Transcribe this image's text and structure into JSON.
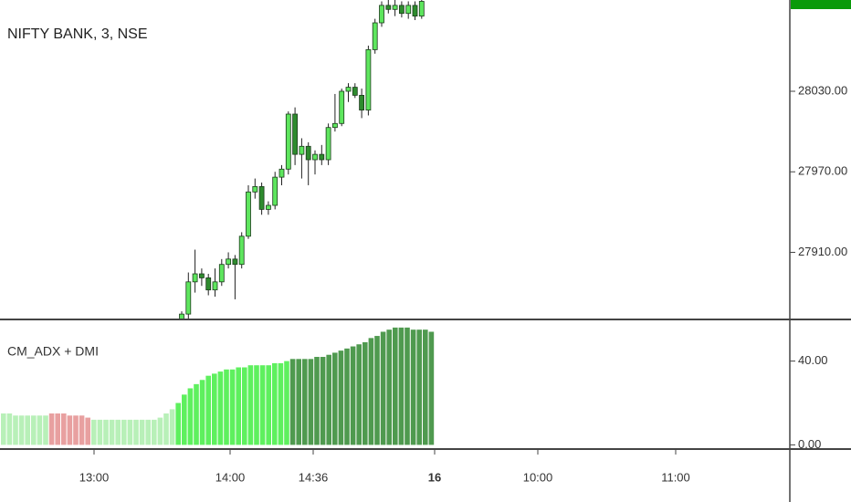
{
  "chart_data": [
    {
      "type": "candlestick",
      "title": "NIFTY BANK, 3, NSE",
      "open": [
        27858,
        27864,
        27888,
        27894,
        27891,
        27882,
        27888,
        27901,
        27905,
        27901,
        27922,
        27955,
        27959,
        27942,
        27945,
        27966,
        27972,
        28013,
        27983,
        27989,
        27979,
        27983,
        27979,
        28003,
        28006,
        28030,
        28033,
        28027,
        28016,
        28061,
        28081,
        28094,
        28091,
        28094,
        28088,
        28094,
        28086
      ],
      "high": [
        27866,
        27895,
        27912,
        27898,
        27894,
        27898,
        27905,
        27910,
        27908,
        27925,
        27960,
        27965,
        27962,
        27948,
        27970,
        27975,
        28015,
        28018,
        27995,
        27992,
        27986,
        27990,
        28006,
        28028,
        28032,
        28036,
        28036,
        28032,
        28064,
        28084,
        28097,
        28098,
        28098,
        28097,
        28097,
        28097,
        28098
      ],
      "low": [
        27855,
        27860,
        27880,
        27885,
        27878,
        27877,
        27885,
        27898,
        27875,
        27898,
        27920,
        27950,
        27938,
        27938,
        27942,
        27960,
        27968,
        27975,
        27965,
        27960,
        27968,
        27975,
        27975,
        28000,
        28004,
        28022,
        28025,
        28010,
        28012,
        28058,
        28078,
        28088,
        28086,
        28085,
        28084,
        28083,
        28084
      ],
      "close": [
        27864,
        27888,
        27894,
        27891,
        27882,
        27888,
        27901,
        27905,
        27901,
        27922,
        27955,
        27959,
        27942,
        27945,
        27966,
        27972,
        28013,
        27983,
        27989,
        27979,
        27983,
        27979,
        28003,
        28006,
        28030,
        28033,
        28027,
        28016,
        28061,
        28081,
        28094,
        28091,
        28094,
        28088,
        28094,
        28086,
        28097
      ],
      "up_color": "#5ee65e",
      "down_color": "#2e8b2e",
      "ylim": [
        27860,
        28098
      ],
      "yticks": [
        {
          "value": 28030,
          "label": "28030.00"
        },
        {
          "value": 27970,
          "label": "27970.00"
        },
        {
          "value": 27910,
          "label": "27910.00"
        }
      ]
    },
    {
      "type": "bar",
      "title": "CM_ADX + DMI",
      "series": [
        {
          "color": "#b8f0b8",
          "values": [
            15,
            15,
            14,
            14,
            14,
            14,
            14,
            14
          ]
        },
        {
          "color": "#e8a0a0",
          "values": [
            15,
            15,
            15,
            14,
            14,
            14,
            13
          ]
        },
        {
          "color": "#b8f0b8",
          "values": [
            12,
            12,
            12,
            12,
            12,
            12,
            12,
            12,
            12,
            12,
            12,
            13,
            15,
            17
          ]
        },
        {
          "color": "#5ef05e",
          "values": [
            20,
            24,
            27,
            29,
            31,
            33,
            34,
            35,
            36,
            36,
            37,
            37,
            38,
            38,
            38,
            38,
            39,
            39,
            40
          ]
        },
        {
          "color": "#4f9a4f",
          "values": [
            41,
            41,
            41,
            41,
            42,
            42,
            43,
            44,
            45,
            46,
            47,
            48,
            49,
            51,
            52,
            54,
            55,
            56,
            56,
            56,
            55,
            55,
            55,
            54
          ]
        }
      ],
      "ylim": [
        -2,
        59
      ],
      "yticks": [
        {
          "value": 40,
          "label": "40.00"
        },
        {
          "value": 0,
          "label": "0.00"
        }
      ],
      "x_labels": [
        "13:00",
        "14:00",
        "14:36",
        "16",
        "10:00",
        "11:00"
      ]
    }
  ]
}
